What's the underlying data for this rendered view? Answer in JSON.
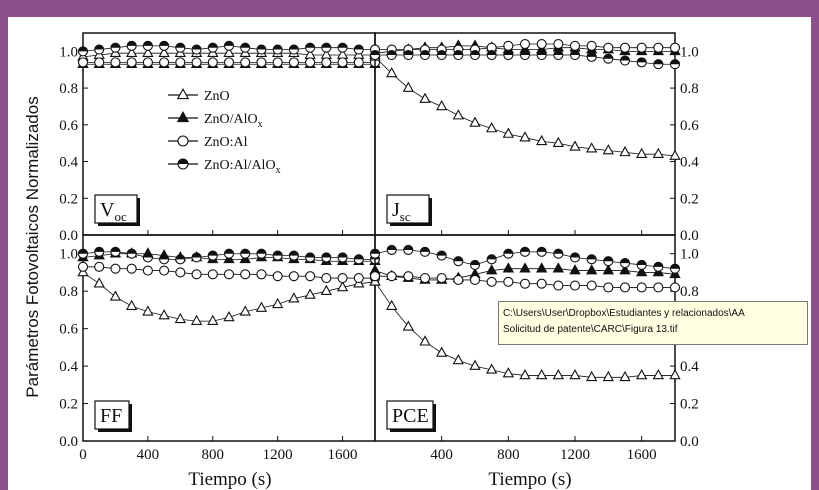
{
  "colors": {
    "background": "#8a4f8c",
    "ink": "#111111",
    "tooltip_bg": "#ffffe1"
  },
  "figure": {
    "ylabel": "Parámetros Fotovoltaicos Normalizados",
    "xlabel_left": "Tiempo (s)",
    "xlabel_right": "Tiempo (s)"
  },
  "legend": {
    "entries": [
      {
        "label": "ZnO",
        "marker": "open-triangle"
      },
      {
        "label": "ZnO/AlOx",
        "marker": "filled-triangle"
      },
      {
        "label": "ZnO:Al",
        "marker": "open-circle"
      },
      {
        "label": "ZnO:Al/AlOx",
        "marker": "half-filled-circle"
      }
    ]
  },
  "tooltip": {
    "line1": "C:\\Users\\User\\Dropbox\\Estudiantes y relacionados\\AA",
    "line2": "Solicitud de patente\\CARC\\Figura 13.tif"
  },
  "chart_data": [
    {
      "type": "line",
      "panel": "Voc",
      "label_main": "V",
      "label_sub": "oc",
      "x": [
        0,
        100,
        200,
        300,
        400,
        500,
        600,
        700,
        800,
        900,
        1000,
        1100,
        1200,
        1300,
        1400,
        1500,
        1600,
        1700,
        1800
      ],
      "xticks": [
        0,
        400,
        800,
        1200,
        1600
      ],
      "xlim": [
        0,
        1800
      ],
      "yticks": [
        0.0,
        0.2,
        0.4,
        0.6,
        0.8,
        1.0
      ],
      "ylim": [
        0,
        1.1
      ],
      "series": [
        {
          "name": "ZnO",
          "values": [
            0.97,
            0.98,
            0.99,
            0.99,
            0.99,
            0.99,
            0.99,
            0.99,
            0.99,
            0.99,
            0.99,
            0.99,
            0.99,
            0.99,
            0.98,
            0.98,
            0.98,
            0.98,
            0.98
          ]
        },
        {
          "name": "ZnO/AlOx",
          "values": [
            0.93,
            0.93,
            0.93,
            0.93,
            0.93,
            0.93,
            0.93,
            0.93,
            0.93,
            0.93,
            0.93,
            0.93,
            0.93,
            0.93,
            0.93,
            0.93,
            0.93,
            0.93,
            0.93
          ]
        },
        {
          "name": "ZnO:Al",
          "values": [
            0.94,
            0.94,
            0.94,
            0.94,
            0.94,
            0.94,
            0.94,
            0.94,
            0.94,
            0.94,
            0.94,
            0.94,
            0.94,
            0.94,
            0.94,
            0.94,
            0.94,
            0.94,
            0.94
          ]
        },
        {
          "name": "ZnO:Al/AlOx",
          "values": [
            1.0,
            1.01,
            1.02,
            1.03,
            1.03,
            1.03,
            1.02,
            1.01,
            1.02,
            1.03,
            1.02,
            1.01,
            1.01,
            1.01,
            1.02,
            1.02,
            1.02,
            1.01,
            1.01
          ]
        }
      ]
    },
    {
      "type": "line",
      "panel": "Jsc",
      "label_main": "J",
      "label_sub": "sc",
      "x": [
        0,
        100,
        200,
        300,
        400,
        500,
        600,
        700,
        800,
        900,
        1000,
        1100,
        1200,
        1300,
        1400,
        1500,
        1600,
        1700,
        1800
      ],
      "xticks": [
        400,
        800,
        1200,
        1600
      ],
      "xlim": [
        0,
        1800
      ],
      "yticks": [
        0.0,
        0.2,
        0.4,
        0.6,
        0.8,
        1.0
      ],
      "ylim": [
        0,
        1.1
      ],
      "series": [
        {
          "name": "ZnO",
          "values": [
            0.97,
            0.88,
            0.8,
            0.74,
            0.7,
            0.65,
            0.61,
            0.58,
            0.55,
            0.53,
            0.51,
            0.5,
            0.48,
            0.47,
            0.46,
            0.45,
            0.44,
            0.44,
            0.43
          ]
        },
        {
          "name": "ZnO/AlOx",
          "values": [
            0.99,
            1.0,
            1.01,
            1.02,
            1.02,
            1.03,
            1.03,
            1.02,
            1.01,
            1.01,
            1.01,
            1.02,
            1.02,
            1.01,
            1.01,
            1.0,
            1.0,
            1.0,
            1.0
          ]
        },
        {
          "name": "ZnO:Al",
          "values": [
            1.01,
            1.01,
            1.01,
            1.01,
            1.01,
            1.01,
            1.01,
            1.02,
            1.03,
            1.04,
            1.04,
            1.04,
            1.03,
            1.03,
            1.02,
            1.02,
            1.02,
            1.02,
            1.02
          ]
        },
        {
          "name": "ZnO:Al/AlOx",
          "values": [
            0.98,
            0.98,
            0.98,
            0.98,
            0.98,
            0.98,
            0.98,
            0.98,
            0.98,
            0.98,
            0.98,
            0.98,
            0.98,
            0.97,
            0.96,
            0.95,
            0.94,
            0.93,
            0.93
          ]
        }
      ]
    },
    {
      "type": "line",
      "panel": "FF",
      "label_main": "FF",
      "label_sub": "",
      "x": [
        0,
        100,
        200,
        300,
        400,
        500,
        600,
        700,
        800,
        900,
        1000,
        1100,
        1200,
        1300,
        1400,
        1500,
        1600,
        1700,
        1800
      ],
      "xticks": [
        0,
        400,
        800,
        1200,
        1600
      ],
      "xlim": [
        0,
        1800
      ],
      "yticks": [
        0.0,
        0.2,
        0.4,
        0.6,
        0.8,
        1.0
      ],
      "ylim": [
        0,
        1.1
      ],
      "series": [
        {
          "name": "ZnO",
          "values": [
            0.9,
            0.84,
            0.77,
            0.72,
            0.69,
            0.67,
            0.65,
            0.64,
            0.64,
            0.66,
            0.69,
            0.71,
            0.73,
            0.76,
            0.78,
            0.8,
            0.82,
            0.84,
            0.85
          ]
        },
        {
          "name": "ZnO/AlOx",
          "values": [
            0.98,
            0.99,
            1.0,
            1.0,
            1.0,
            0.99,
            0.98,
            0.98,
            0.97,
            0.97,
            0.97,
            0.98,
            0.98,
            0.97,
            0.97,
            0.96,
            0.96,
            0.96,
            0.96
          ]
        },
        {
          "name": "ZnO:Al",
          "values": [
            0.93,
            0.93,
            0.92,
            0.92,
            0.91,
            0.91,
            0.9,
            0.89,
            0.89,
            0.89,
            0.89,
            0.89,
            0.88,
            0.88,
            0.88,
            0.87,
            0.87,
            0.87,
            0.87
          ]
        },
        {
          "name": "ZnO:Al/AlOx",
          "values": [
            1.0,
            1.01,
            1.01,
            1.0,
            0.98,
            0.97,
            0.97,
            0.98,
            0.99,
            1.0,
            1.0,
            1.0,
            0.99,
            0.99,
            0.98,
            0.98,
            0.98,
            0.97,
            0.97
          ]
        }
      ]
    },
    {
      "type": "line",
      "panel": "PCE",
      "label_main": "PCE",
      "label_sub": "",
      "x": [
        0,
        100,
        200,
        300,
        400,
        500,
        600,
        700,
        800,
        900,
        1000,
        1100,
        1200,
        1300,
        1400,
        1500,
        1600,
        1700,
        1800
      ],
      "xticks": [
        400,
        800,
        1200,
        1600
      ],
      "xlim": [
        0,
        1800
      ],
      "yticks": [
        0.0,
        0.2,
        0.4,
        0.6,
        0.8,
        1.0
      ],
      "ylim": [
        0,
        1.1
      ],
      "series": [
        {
          "name": "ZnO",
          "values": [
            0.85,
            0.72,
            0.61,
            0.53,
            0.47,
            0.43,
            0.4,
            0.38,
            0.36,
            0.35,
            0.35,
            0.35,
            0.35,
            0.34,
            0.34,
            0.34,
            0.35,
            0.35,
            0.35
          ]
        },
        {
          "name": "ZnO/AlOx",
          "values": [
            0.91,
            0.88,
            0.87,
            0.86,
            0.86,
            0.87,
            0.89,
            0.91,
            0.92,
            0.92,
            0.92,
            0.92,
            0.91,
            0.91,
            0.91,
            0.91,
            0.9,
            0.9,
            0.89
          ]
        },
        {
          "name": "ZnO:Al",
          "values": [
            0.88,
            0.88,
            0.88,
            0.87,
            0.87,
            0.86,
            0.86,
            0.85,
            0.85,
            0.84,
            0.84,
            0.83,
            0.83,
            0.83,
            0.82,
            0.82,
            0.82,
            0.82,
            0.82
          ]
        },
        {
          "name": "ZnO:Al/AlOx",
          "values": [
            1.0,
            1.02,
            1.02,
            1.01,
            0.99,
            0.96,
            0.94,
            0.97,
            1.0,
            1.01,
            1.01,
            1.0,
            0.98,
            0.97,
            0.96,
            0.95,
            0.94,
            0.93,
            0.92
          ]
        }
      ]
    }
  ]
}
